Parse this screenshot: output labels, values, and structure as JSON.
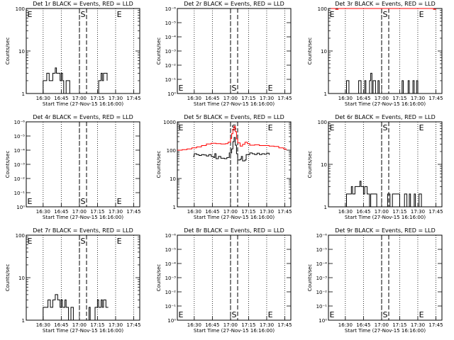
{
  "page_title": "",
  "chart_data": [
    {
      "type": "line",
      "title": "Det 1r BLACK = Events, RED = LLD",
      "xlabel": "Start Time (27-Nov-15 16:16:00)",
      "ylabel": "Counts/sec",
      "scale": "log",
      "yticks": [
        "1",
        "10",
        "100"
      ],
      "xticks": [
        "16:30",
        "16:45",
        "17:00",
        "17:15",
        "17:30",
        "17:45"
      ],
      "markers": {
        "S": "17:03",
        "E_left": "16:16",
        "E_right": "17:33"
      },
      "series": [
        {
          "name": "Events",
          "color": "#000000",
          "points": [
            [
              "16:29",
              1
            ],
            [
              "16:30",
              2
            ],
            [
              "16:32",
              2
            ],
            [
              "16:33",
              3
            ],
            [
              "16:35",
              2
            ],
            [
              "16:37",
              2
            ],
            [
              "16:38",
              3
            ],
            [
              "16:39",
              3
            ],
            [
              "16:40",
              4
            ],
            [
              "16:41",
              3
            ],
            [
              "16:43",
              3
            ],
            [
              "16:44",
              2
            ],
            [
              "16:45",
              3
            ],
            [
              "16:46",
              2
            ],
            [
              "16:47",
              1
            ],
            [
              "16:49",
              2
            ],
            [
              "16:52",
              1
            ],
            [
              "16:56",
              1
            ],
            [
              "17:04",
              1
            ],
            [
              "17:08",
              1
            ],
            [
              "17:12",
              1
            ],
            [
              "17:16",
              2
            ],
            [
              "17:18",
              3
            ],
            [
              "17:19",
              2
            ],
            [
              "17:20",
              3
            ],
            [
              "17:22",
              3
            ],
            [
              "17:23",
              2
            ]
          ]
        }
      ]
    },
    {
      "type": "line",
      "title": "Det 2r BLACK = Events, RED = LLD",
      "xlabel": "Start Time (27-Nov-15 16:16:00)",
      "ylabel": "Counts/sec",
      "scale": "exp",
      "yticks": [
        "10⁰",
        "10⁻¹",
        "10⁻²",
        "10⁻³",
        "10⁻⁴",
        "10⁻⁵",
        "10⁻⁶"
      ],
      "xticks": [
        "16:30",
        "16:45",
        "17:00",
        "17:15",
        "17:30",
        "17:45"
      ],
      "markers": {
        "S": "17:03",
        "E_left": "16:16",
        "E_right": "17:33"
      },
      "series": []
    },
    {
      "type": "line",
      "title": "Det 3r BLACK = Events, RED = LLD",
      "xlabel": "Start Time (27-Nov-15 16:16:00)",
      "ylabel": "Counts/sec",
      "scale": "log",
      "yticks": [
        "1",
        "10",
        "100"
      ],
      "xticks": [
        "16:30",
        "16:45",
        "17:00",
        "17:15",
        "17:30",
        "17:45"
      ],
      "markers": {
        "S": "17:03",
        "E_left": "16:16",
        "E_right": "17:33"
      },
      "series": [
        {
          "name": "Events",
          "color": "#000000",
          "points": [
            [
              "16:30",
              1
            ],
            [
              "16:31",
              2
            ],
            [
              "16:33",
              1
            ],
            [
              "16:38",
              1
            ],
            [
              "16:41",
              2
            ],
            [
              "16:43",
              1
            ],
            [
              "16:46",
              2
            ],
            [
              "16:47",
              1
            ],
            [
              "16:50",
              2
            ],
            [
              "16:51",
              3
            ],
            [
              "16:52",
              1
            ],
            [
              "16:53",
              2
            ],
            [
              "16:55",
              1
            ],
            [
              "16:57",
              2
            ],
            [
              "16:58",
              1
            ],
            [
              "17:13",
              1
            ],
            [
              "17:17",
              2
            ],
            [
              "17:18",
              1
            ],
            [
              "17:22",
              2
            ],
            [
              "17:23",
              1
            ],
            [
              "17:26",
              2
            ],
            [
              "17:27",
              1
            ],
            [
              "17:29",
              2
            ],
            [
              "17:30",
              1
            ]
          ]
        },
        {
          "name": "LLD",
          "color": "#ff0000",
          "points": [
            [
              "16:18",
              100
            ],
            [
              "16:22",
              95
            ],
            [
              "16:24",
              100
            ],
            [
              "17:40",
              100
            ],
            [
              "17:43",
              95
            ],
            [
              "17:45",
              100
            ]
          ]
        }
      ]
    },
    {
      "type": "line",
      "title": "Det 4r BLACK = Events, RED = LLD",
      "xlabel": "Start Time (27-Nov-15 16:16:00)",
      "ylabel": "Counts/sec",
      "scale": "exp",
      "yticks": [
        "10⁰",
        "10⁻¹",
        "10⁻²",
        "10⁻³",
        "10⁻⁴",
        "10⁻⁵",
        "10⁻⁶"
      ],
      "xticks": [
        "16:30",
        "16:45",
        "17:00",
        "17:15",
        "17:30",
        "17:45"
      ],
      "markers": {
        "S": "17:03",
        "E_left": "16:16",
        "E_right": "17:33"
      },
      "series": []
    },
    {
      "type": "line",
      "title": "Det 5r BLACK = Events, RED = LLD",
      "xlabel": "Start Time (27-Nov-15 16:16:00)",
      "ylabel": "Counts/sec",
      "scale": "log",
      "yticks": [
        "1",
        "10",
        "100",
        "1000"
      ],
      "xticks": [
        "16:30",
        "16:45",
        "17:00",
        "17:15",
        "17:30",
        "17:45"
      ],
      "markers": {
        "S": "17:03",
        "E_left": "16:16",
        "E_right": "17:33"
      },
      "series": [
        {
          "name": "Events",
          "color": "#000000",
          "points": [
            [
              "16:29",
              60
            ],
            [
              "16:30",
              75
            ],
            [
              "16:32",
              70
            ],
            [
              "16:34",
              65
            ],
            [
              "16:36",
              70
            ],
            [
              "16:38",
              68
            ],
            [
              "16:40",
              62
            ],
            [
              "16:42",
              70
            ],
            [
              "16:44",
              60
            ],
            [
              "16:46",
              55
            ],
            [
              "16:47",
              75
            ],
            [
              "16:48",
              50
            ],
            [
              "16:50",
              60
            ],
            [
              "16:52",
              52
            ],
            [
              "16:55",
              50
            ],
            [
              "16:57",
              55
            ],
            [
              "16:59",
              80
            ],
            [
              "17:01",
              110
            ],
            [
              "17:02",
              200
            ],
            [
              "17:03",
              280
            ],
            [
              "17:04",
              150
            ],
            [
              "17:05",
              75
            ],
            [
              "17:06",
              45
            ],
            [
              "17:08",
              48
            ],
            [
              "17:09",
              60
            ],
            [
              "17:10",
              42
            ],
            [
              "17:12",
              45
            ],
            [
              "17:13",
              70
            ],
            [
              "17:16",
              80
            ],
            [
              "17:18",
              75
            ],
            [
              "17:20",
              70
            ],
            [
              "17:22",
              78
            ],
            [
              "17:24",
              70
            ],
            [
              "17:26",
              75
            ],
            [
              "17:28",
              72
            ],
            [
              "17:30",
              78
            ],
            [
              "17:32",
              68
            ]
          ]
        },
        {
          "name": "LLD",
          "color": "#ff0000",
          "points": [
            [
              "16:16",
              100
            ],
            [
              "16:18",
              100
            ],
            [
              "16:20",
              105
            ],
            [
              "16:24",
              110
            ],
            [
              "16:28",
              120
            ],
            [
              "16:32",
              130
            ],
            [
              "16:36",
              145
            ],
            [
              "16:40",
              165
            ],
            [
              "16:44",
              175
            ],
            [
              "16:48",
              170
            ],
            [
              "16:52",
              165
            ],
            [
              "16:56",
              170
            ],
            [
              "16:58",
              190
            ],
            [
              "17:00",
              260
            ],
            [
              "17:01",
              380
            ],
            [
              "17:02",
              550
            ],
            [
              "17:03",
              700
            ],
            [
              "17:04",
              450
            ],
            [
              "17:05",
              250
            ],
            [
              "17:06",
              180
            ],
            [
              "17:08",
              140
            ],
            [
              "17:10",
              160
            ],
            [
              "17:12",
              190
            ],
            [
              "17:14",
              170
            ],
            [
              "17:16",
              150
            ],
            [
              "17:20",
              155
            ],
            [
              "17:24",
              145
            ],
            [
              "17:28",
              145
            ],
            [
              "17:32",
              140
            ],
            [
              "17:36",
              135
            ],
            [
              "17:40",
              120
            ],
            [
              "17:44",
              110
            ],
            [
              "17:46",
              100
            ]
          ]
        }
      ]
    },
    {
      "type": "line",
      "title": "Det 6r BLACK = Events, RED = LLD",
      "xlabel": "Start Time (27-Nov-15 16:16:00)",
      "ylabel": "Counts/sec",
      "scale": "log",
      "yticks": [
        "1",
        "10",
        "100"
      ],
      "xticks": [
        "16:30",
        "16:45",
        "17:00",
        "17:15",
        "17:30",
        "17:45"
      ],
      "markers": {
        "S": "17:03",
        "E_left": "16:16",
        "E_right": "17:33"
      },
      "series": [
        {
          "name": "Events",
          "color": "#000000",
          "points": [
            [
              "16:30",
              1
            ],
            [
              "16:31",
              2
            ],
            [
              "16:33",
              2
            ],
            [
              "16:35",
              3
            ],
            [
              "16:36",
              2
            ],
            [
              "16:38",
              3
            ],
            [
              "16:40",
              3
            ],
            [
              "16:42",
              4
            ],
            [
              "16:43",
              3
            ],
            [
              "16:45",
              2
            ],
            [
              "16:46",
              3
            ],
            [
              "16:48",
              2
            ],
            [
              "16:50",
              1
            ],
            [
              "16:51",
              2
            ],
            [
              "16:54",
              2
            ],
            [
              "16:56",
              1
            ],
            [
              "17:05",
              2
            ],
            [
              "17:07",
              1
            ],
            [
              "17:09",
              2
            ],
            [
              "17:13",
              2
            ],
            [
              "17:15",
              1
            ],
            [
              "17:19",
              2
            ],
            [
              "17:21",
              1
            ],
            [
              "17:23",
              2
            ],
            [
              "17:24",
              1
            ],
            [
              "17:27",
              2
            ],
            [
              "17:28",
              1
            ],
            [
              "17:31",
              2
            ],
            [
              "17:33",
              1
            ]
          ]
        }
      ]
    },
    {
      "type": "line",
      "title": "Det 7r BLACK = Events, RED = LLD",
      "xlabel": "Start Time (27-Nov-15 16:16:00)",
      "ylabel": "Counts/sec",
      "scale": "log",
      "yticks": [
        "1",
        "10",
        "100"
      ],
      "xticks": [
        "16:30",
        "16:45",
        "17:00",
        "17:15",
        "17:30",
        "17:45"
      ],
      "markers": {
        "S": "17:03",
        "E_left": "16:16",
        "E_right": "17:33"
      },
      "series": [
        {
          "name": "Events",
          "color": "#000000",
          "points": [
            [
              "16:29",
              1
            ],
            [
              "16:30",
              2
            ],
            [
              "16:32",
              2
            ],
            [
              "16:34",
              3
            ],
            [
              "16:36",
              2
            ],
            [
              "16:38",
              3
            ],
            [
              "16:40",
              4
            ],
            [
              "16:42",
              3
            ],
            [
              "16:44",
              2
            ],
            [
              "16:45",
              3
            ],
            [
              "16:46",
              2
            ],
            [
              "16:48",
              3
            ],
            [
              "16:49",
              2
            ],
            [
              "16:51",
              1
            ],
            [
              "16:53",
              2
            ],
            [
              "16:55",
              1
            ],
            [
              "17:05",
              1
            ],
            [
              "17:08",
              2
            ],
            [
              "17:09",
              1
            ],
            [
              "17:12",
              1
            ],
            [
              "17:13",
              2
            ],
            [
              "17:15",
              3
            ],
            [
              "17:16",
              2
            ],
            [
              "17:18",
              3
            ],
            [
              "17:19",
              2
            ],
            [
              "17:20",
              3
            ],
            [
              "17:22",
              2
            ],
            [
              "17:24",
              2
            ]
          ]
        }
      ]
    },
    {
      "type": "line",
      "title": "Det 8r BLACK = Events, RED = LLD",
      "xlabel": "Start Time (27-Nov-15 16:16:00)",
      "ylabel": "Counts/sec",
      "scale": "exp",
      "yticks": [
        "10⁰",
        "10⁻¹",
        "10⁻²",
        "10⁻³",
        "10⁻⁴",
        "10⁻⁵",
        "10⁻⁶"
      ],
      "xticks": [
        "16:30",
        "16:45",
        "17:00",
        "17:15",
        "17:30",
        "17:45"
      ],
      "markers": {
        "S": "17:03",
        "E_left": "16:16",
        "E_right": "17:33"
      },
      "series": []
    },
    {
      "type": "line",
      "title": "Det 9r BLACK = Events, RED = LLD",
      "xlabel": "Start Time (27-Nov-15 16:16:00)",
      "ylabel": "Counts/sec",
      "scale": "exp",
      "yticks": [
        "10⁰",
        "10⁻¹",
        "10⁻²",
        "10⁻³",
        "10⁻⁴",
        "10⁻⁵",
        "10⁻⁶"
      ],
      "xticks": [
        "16:30",
        "16:45",
        "17:00",
        "17:15",
        "17:30",
        "17:45"
      ],
      "markers": {
        "S": "17:03",
        "E_left": "16:16",
        "E_right": "17:33"
      },
      "series": []
    }
  ]
}
